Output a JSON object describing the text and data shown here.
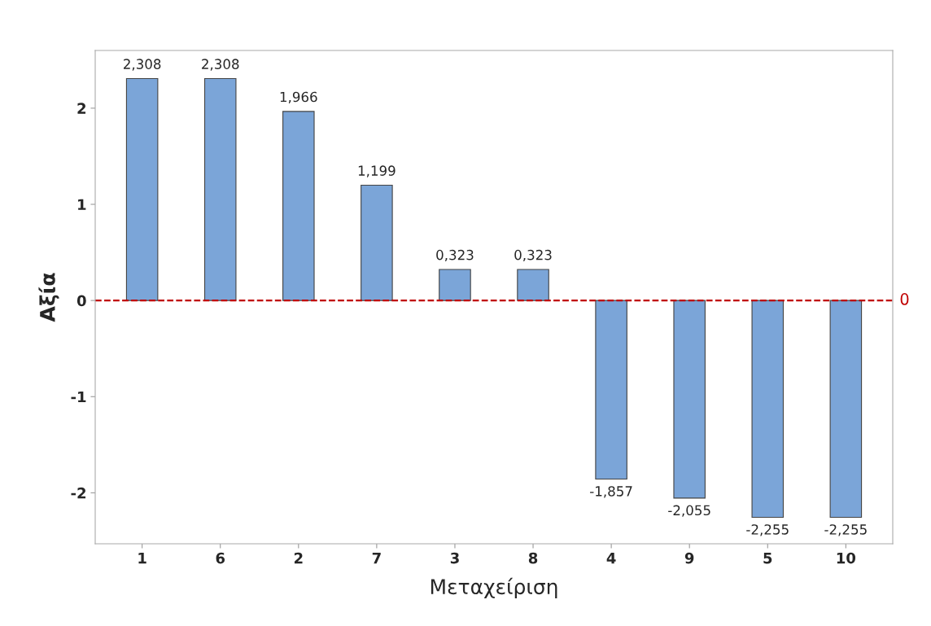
{
  "chart_data": {
    "type": "bar",
    "xlabel": "Μεταχείριση",
    "ylabel": "Αξία",
    "categories": [
      "1",
      "6",
      "2",
      "7",
      "3",
      "8",
      "4",
      "9",
      "5",
      "10"
    ],
    "values": [
      2.308,
      2.308,
      1.966,
      1.199,
      0.323,
      0.323,
      -1.857,
      -2.055,
      -2.255,
      -2.255
    ],
    "value_labels": [
      "2,308",
      "2,308",
      "1,966",
      "1,199",
      "0,323",
      "0,323",
      "-1,857",
      "-2,055",
      "-2,255",
      "-2,255"
    ],
    "color": "#7ba5d8",
    "ylim": [
      -2.53,
      2.6
    ],
    "yticks": [
      -2,
      -1,
      0,
      1,
      2
    ],
    "grid": false,
    "legend": false,
    "ref_lines": [
      {
        "axis": "y",
        "value": 0,
        "label": "0",
        "color": "#c00000",
        "line_style": "dashed"
      }
    ]
  }
}
